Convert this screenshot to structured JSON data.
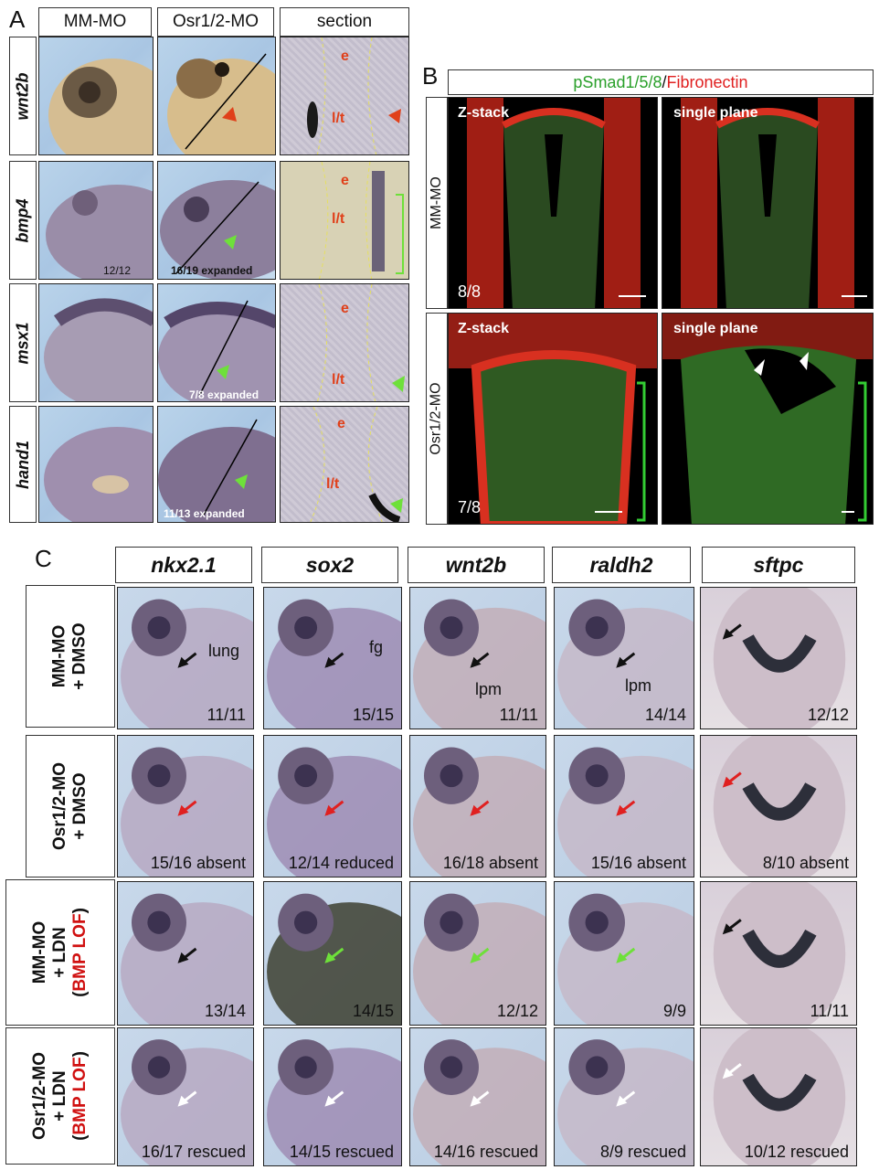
{
  "panel_a": {
    "letter": "A",
    "col_headers": [
      "MM-MO",
      "Osr1/2-MO",
      "section"
    ],
    "row_labels": [
      "wnt2b",
      "bmp4",
      "msx1",
      "hand1"
    ],
    "counts": {
      "bmp4_mm": "12/12",
      "bmp4_osr": "16/19 expanded",
      "msx1_osr": "7/8 expanded",
      "hand1_osr": "11/13 expanded"
    },
    "section_labels": {
      "e": "e",
      "lt": "l/t"
    }
  },
  "panel_b": {
    "letter": "B",
    "title_green": "pSmad1/5/8",
    "title_sep": " / ",
    "title_red": "Fibronectin",
    "row_labels": [
      "MM-MO",
      "Osr1/2-MO"
    ],
    "captions": [
      "Z-stack",
      "single plane",
      "Z-stack",
      "single plane"
    ],
    "counts": [
      "8/8",
      "7/8"
    ],
    "colors": {
      "green": "#2aa02a",
      "red": "#e02020"
    }
  },
  "panel_c": {
    "letter": "C",
    "col_headers": [
      "nkx2.1",
      "sox2",
      "wnt2b",
      "raldh2",
      "sftpc"
    ],
    "rows": [
      {
        "line1": "MM-MO",
        "line2": "+ DMSO",
        "line3": "",
        "line3_red": "",
        "counts": [
          "11/11",
          "15/15",
          "11/11",
          "14/14",
          "12/12"
        ]
      },
      {
        "line1": "Osr1/2-MO",
        "line2": "+ DMSO",
        "line3": "",
        "line3_red": "",
        "counts": [
          "15/16 absent",
          "12/14 reduced",
          "16/18 absent",
          "15/16 absent",
          "8/10 absent"
        ]
      },
      {
        "line1": "MM-MO",
        "line2": "+ LDN",
        "line3": "(",
        "line3_red": "BMP LOF",
        "line3_end": ")",
        "counts": [
          "13/14",
          "14/15",
          "12/12",
          "9/9",
          "11/11"
        ]
      },
      {
        "line1": "Osr1/2-MO",
        "line2": "+ LDN",
        "line3": "(",
        "line3_red": "BMP LOF",
        "line3_end": ")",
        "counts": [
          "16/17 rescued",
          "14/15 rescued",
          "14/16 rescued",
          "8/9 rescued",
          "10/12 rescued"
        ]
      }
    ],
    "annotations": {
      "lung": "lung",
      "fg": "fg",
      "lpm1": "lpm",
      "lpm2": "lpm"
    }
  }
}
